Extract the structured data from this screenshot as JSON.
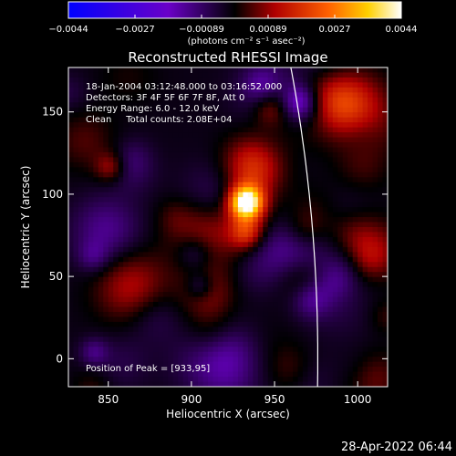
{
  "chart_data": {
    "type": "heatmap",
    "title": "Reconstructed RHESSI Image",
    "xlabel": "Heliocentric X (arcsec)",
    "ylabel": "Heliocentric Y (arcsec)",
    "x_ticks": [
      "850",
      "900",
      "950",
      "1000"
    ],
    "x_tick_values": [
      850,
      900,
      950,
      1000
    ],
    "y_ticks": [
      "0",
      "50",
      "100",
      "150"
    ],
    "y_tick_values": [
      0,
      50,
      100,
      150
    ],
    "xlim": [
      826,
      1018
    ],
    "ylim": [
      -17,
      177
    ],
    "colorbar": {
      "ticks": [
        "−0.0044",
        "−0.0027",
        "−0.00089",
        "0.00089",
        "0.0027",
        "0.0044"
      ],
      "range": [
        -0.0044,
        0.0044
      ],
      "units_label": "(photons cm⁻² s⁻¹ asec⁻²)",
      "colors": [
        "#0000ff",
        "#6a00c8",
        "#000000",
        "#b00000",
        "#ff6000",
        "#ffd000",
        "#ffffff"
      ]
    },
    "info": [
      "18-Jan-2004 03:12:48.000 to 03:16:52.000",
      "Detectors: 3F 4F 5F 6F 7F 8F, Att 0",
      "Energy Range: 6.0 - 12.0 keV",
      "Clean     Total counts: 2.08E+04"
    ],
    "peak_label": "Position of Peak = [933,95]",
    "peak": {
      "x": 933,
      "y": 95
    },
    "limb_color": "#ffffff",
    "grid": false
  },
  "footer_timestamp": "28-Apr-2022 06:44"
}
